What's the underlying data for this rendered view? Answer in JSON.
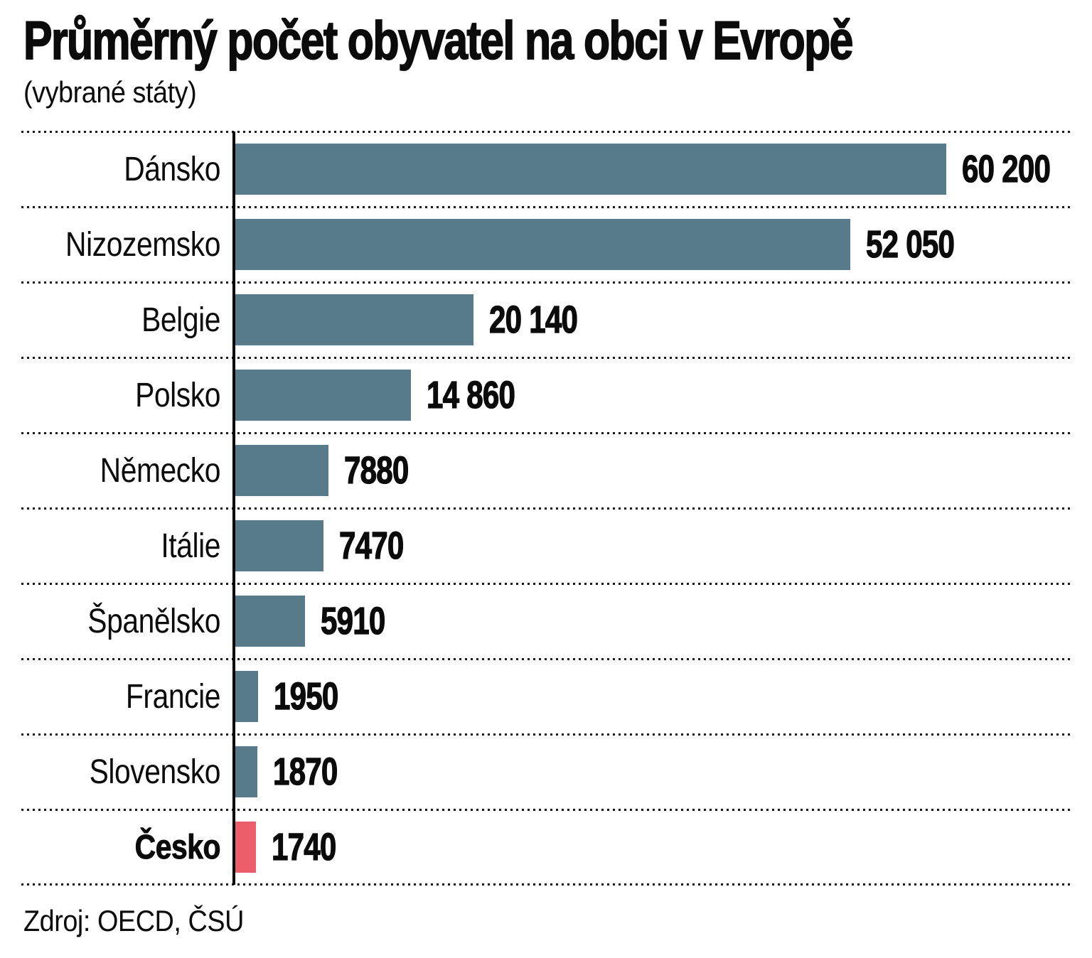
{
  "chart_data": {
    "type": "bar",
    "orientation": "horizontal",
    "title": "Průměrný počet obyvatel na obci v Evropě",
    "subtitle": "(vybrané státy)",
    "source": "Zdroj: OECD, ČSÚ",
    "categories": [
      "Dánsko",
      "Nizozemsko",
      "Belgie",
      "Polsko",
      "Německo",
      "Itálie",
      "Španělsko",
      "Francie",
      "Slovensko",
      "Česko"
    ],
    "values": [
      60200,
      52050,
      20140,
      14860,
      7880,
      7470,
      5910,
      1950,
      1870,
      1740
    ],
    "value_labels": [
      "60 200",
      "52 050",
      "20 140",
      "14 860",
      "7880",
      "7470",
      "5910",
      "1950",
      "1870",
      "1740"
    ],
    "xlim": [
      0,
      60200
    ],
    "highlight_category": "Česko",
    "colors": {
      "bar": "#587B8C",
      "highlight": "#EC5F6A",
      "text": "#0B0B0B",
      "grid": "#1A1A1A",
      "axis": "#000000"
    },
    "legend": "none",
    "grid": "dotted horizontal row separators",
    "value_label_position": "right of bar end"
  }
}
